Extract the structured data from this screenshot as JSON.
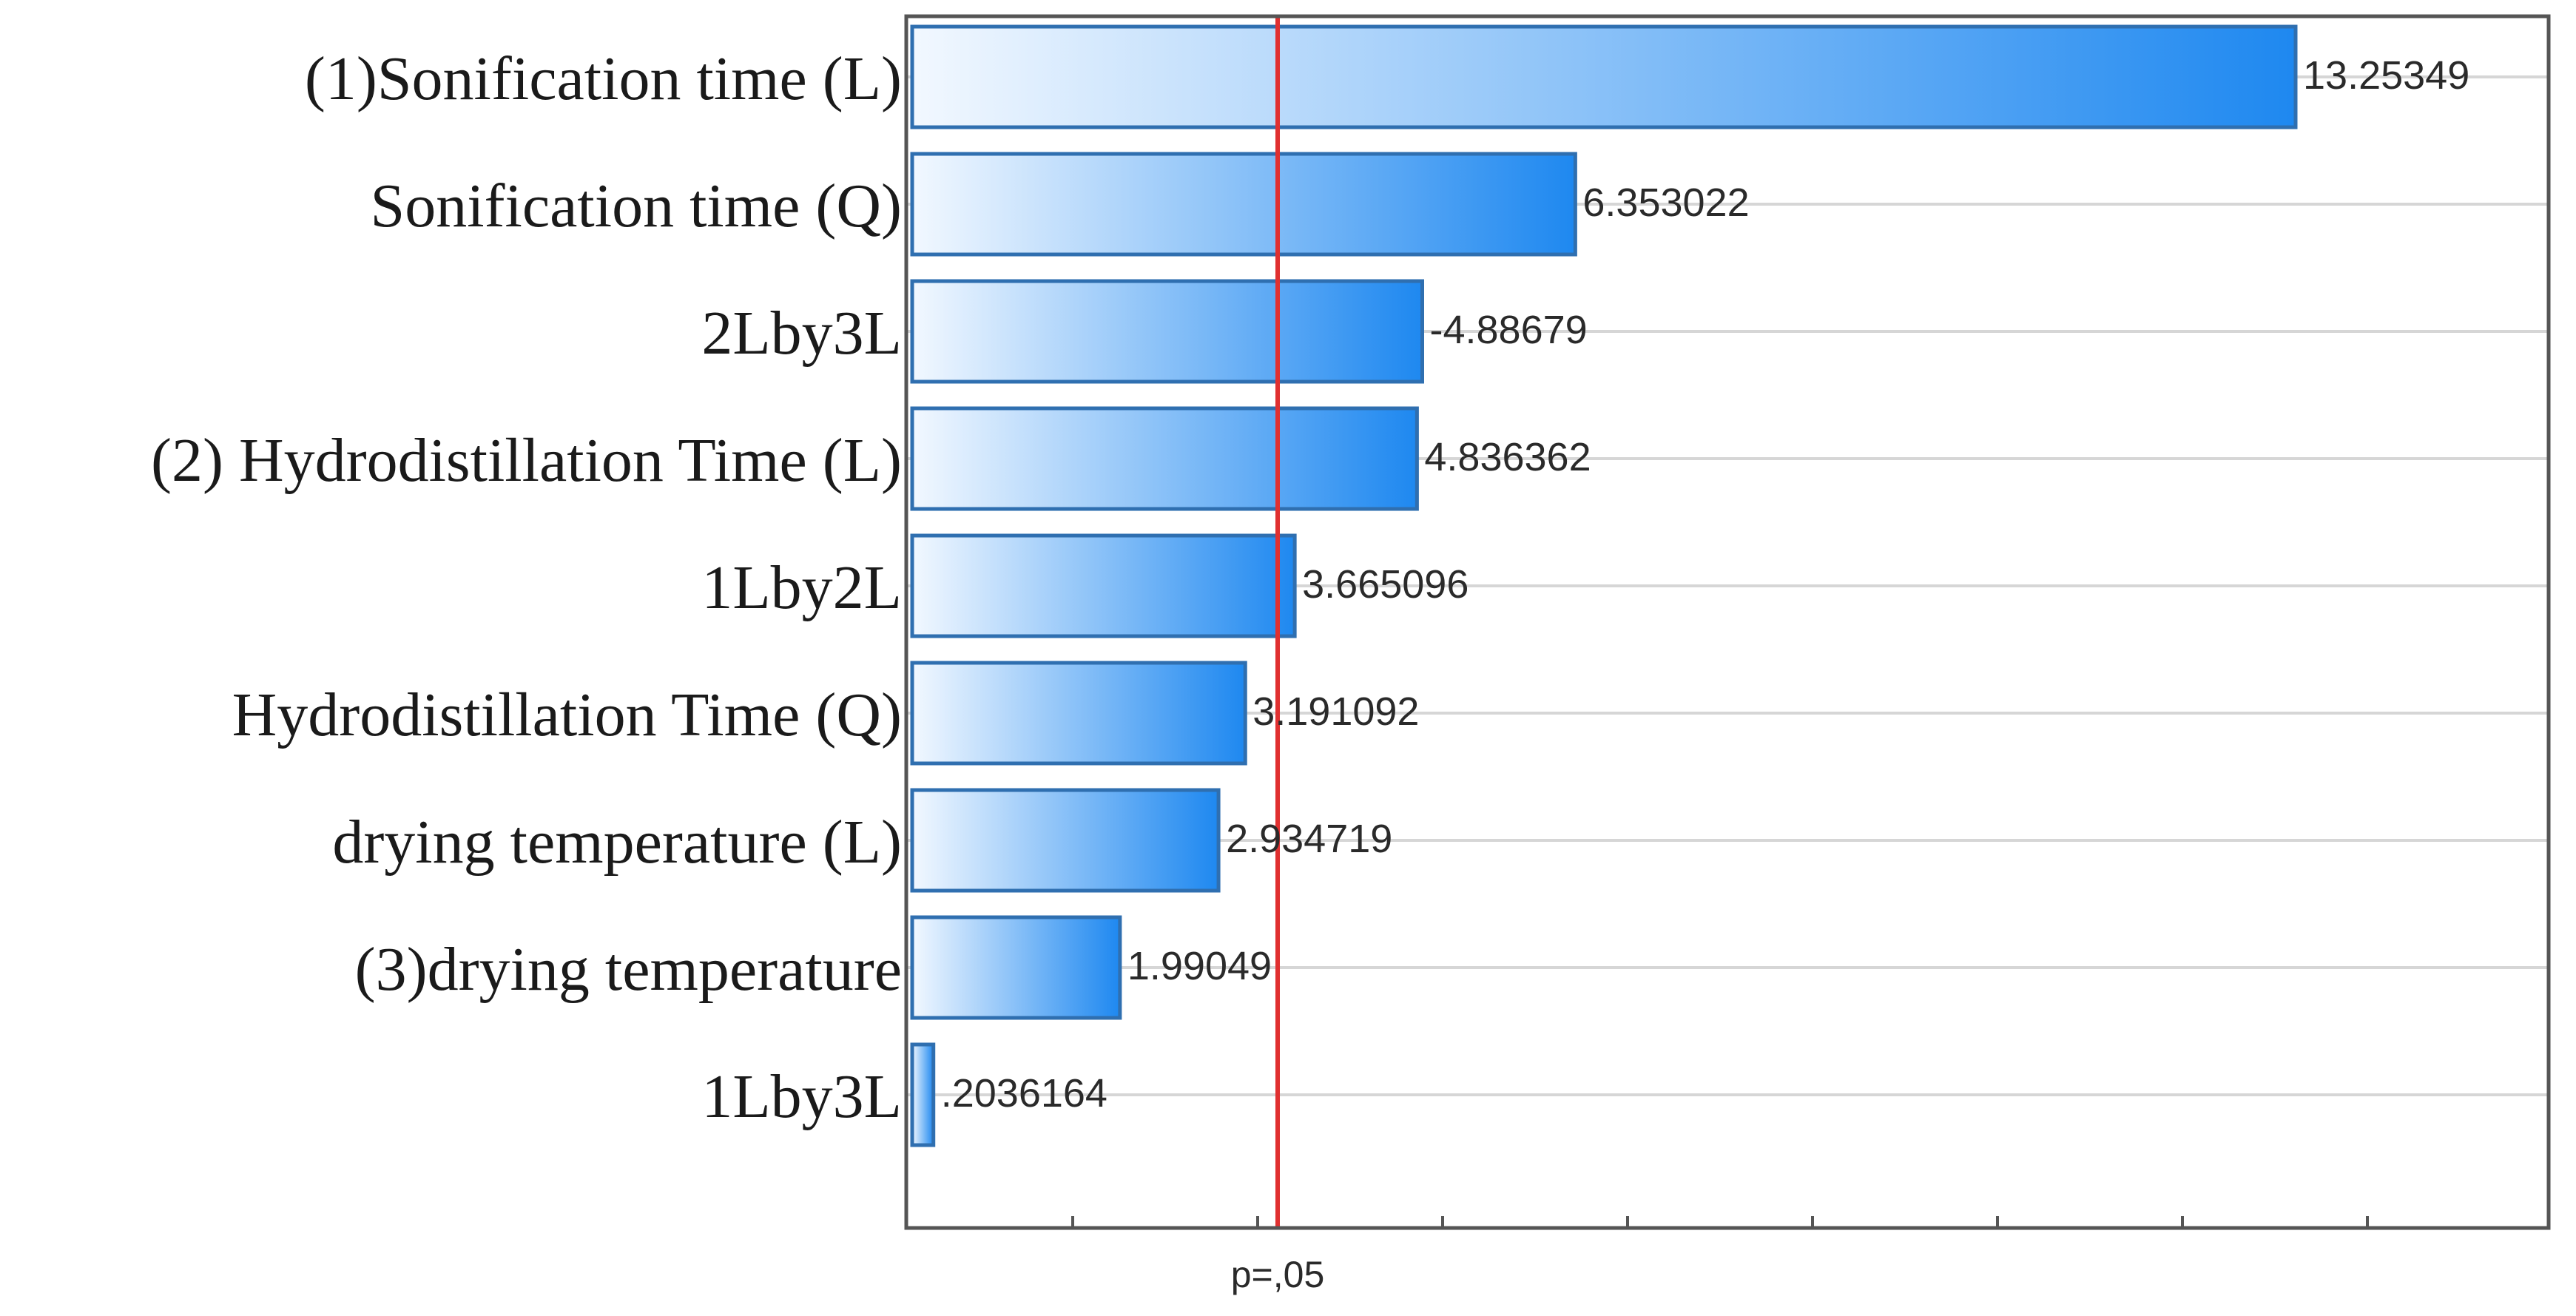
{
  "chart_data": {
    "type": "bar",
    "orientation": "horizontal",
    "categories": [
      "(1)Sonification time (L)",
      "Sonification time (Q)",
      "2Lby3L",
      "(2) Hydrodistillation Time (L)",
      "1Lby2L",
      "Hydrodistillation Time (Q)",
      "drying temperature (L)",
      "(3)drying temperature",
      "1Lby3L"
    ],
    "values": [
      13.25349,
      6.353022,
      -4.88679,
      4.836362,
      3.665096,
      3.191092,
      2.934719,
      1.99049,
      0.2036164
    ],
    "value_labels": [
      "13.25349",
      "6.353022",
      "-4.88679",
      "4.836362",
      "3.665096",
      "3.191092",
      "2.934719",
      "1.99049",
      ".2036164"
    ],
    "reference_line": {
      "value": 1.96,
      "label": "p=,05",
      "color": "#e03030"
    },
    "xlim": [
      -2,
      15
    ],
    "grid": true,
    "bar_gradient": {
      "from": "#f2f8ff",
      "to": "#1e88f0"
    },
    "bar_border_color": "#2f6fb0"
  }
}
